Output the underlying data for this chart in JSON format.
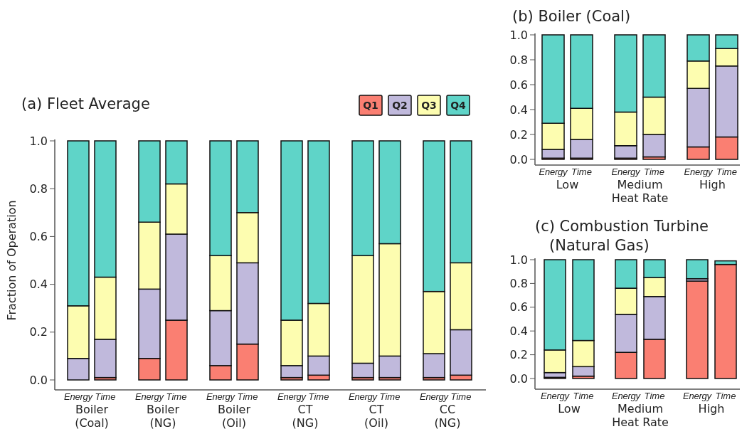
{
  "chart_data": [
    {
      "type": "bar",
      "stacked": true,
      "title": "(a) Fleet Average",
      "ylabel": "Fraction of Operation",
      "categories": [
        "Energy",
        "Time",
        "Energy",
        "Time",
        "Energy",
        "Time",
        "Energy",
        "Time",
        "Energy",
        "Time",
        "Energy",
        "Time"
      ],
      "annotations": [
        "Boiler\n(Coal)",
        "Boiler\n(NG)",
        "Boiler\n(Oil)",
        "CT\n(NG)",
        "CT\n(Oil)",
        "CC\n(NG)"
      ],
      "ylim": [
        0,
        1
      ],
      "yticks": [
        {
          "value": 0,
          "label": "0.0"
        },
        {
          "value": 0.2,
          "label": "0.2"
        },
        {
          "value": 0.4,
          "label": "0.4"
        },
        {
          "value": 0.6,
          "label": "0.6"
        },
        {
          "value": 0.8,
          "label": "0.8"
        },
        {
          "value": 1,
          "label": "1.0"
        }
      ],
      "grid": false,
      "legend": "top right",
      "series": [
        {
          "name": "Q1",
          "color": "#fa7f72",
          "values": [
            0.0,
            0.01,
            0.09,
            0.25,
            0.06,
            0.15,
            0.01,
            0.02,
            0.01,
            0.01,
            0.01,
            0.02
          ]
        },
        {
          "name": "Q2",
          "color": "#c0b9dc",
          "values": [
            0.09,
            0.16,
            0.29,
            0.36,
            0.23,
            0.34,
            0.05,
            0.08,
            0.06,
            0.09,
            0.1,
            0.19
          ]
        },
        {
          "name": "Q3",
          "color": "#fdfdb0",
          "values": [
            0.22,
            0.26,
            0.28,
            0.21,
            0.23,
            0.21,
            0.19,
            0.22,
            0.45,
            0.47,
            0.26,
            0.28
          ]
        },
        {
          "name": "Q4",
          "color": "#5fd4c8",
          "values": [
            0.69,
            0.57,
            0.34,
            0.18,
            0.48,
            0.3,
            0.75,
            0.68,
            0.48,
            0.43,
            0.63,
            0.51
          ]
        }
      ]
    },
    {
      "type": "bar",
      "stacked": true,
      "title": "(b) Boiler (Coal)",
      "xlabel": "Heat Rate",
      "categories": [
        "Energy",
        "Time",
        "Energy",
        "Time",
        "Energy",
        "Time"
      ],
      "annotations": [
        "Low",
        "Medium",
        "High"
      ],
      "ylim": [
        0,
        1
      ],
      "yticks": [
        {
          "value": 0,
          "label": "0.0"
        },
        {
          "value": 0.2,
          "label": "0.2"
        },
        {
          "value": 0.4,
          "label": "0.4"
        },
        {
          "value": 0.6,
          "label": "0.6"
        },
        {
          "value": 0.8,
          "label": "0.8"
        },
        {
          "value": 1,
          "label": "1.0"
        }
      ],
      "grid": false,
      "legend": false,
      "series": [
        {
          "color": "#fa7f72",
          "values": [
            0.01,
            0.01,
            0.01,
            0.02,
            0.1,
            0.18
          ]
        },
        {
          "color": "#c0b9dc",
          "values": [
            0.07,
            0.15,
            0.1,
            0.18,
            0.47,
            0.57
          ]
        },
        {
          "color": "#fdfdb0",
          "values": [
            0.21,
            0.25,
            0.27,
            0.3,
            0.22,
            0.14
          ]
        },
        {
          "color": "#5fd4c8",
          "values": [
            0.71,
            0.59,
            0.62,
            0.5,
            0.21,
            0.11
          ]
        }
      ]
    },
    {
      "type": "bar",
      "stacked": true,
      "title": "(c) Combustion Turbine\n(Natural Gas)",
      "xlabel": "Heat Rate",
      "categories": [
        "Energy",
        "Time",
        "Energy",
        "Time",
        "Energy",
        "Time"
      ],
      "annotations": [
        "Low",
        "Medium",
        "High"
      ],
      "ylim": [
        0,
        1
      ],
      "yticks": [
        {
          "value": 0,
          "label": "0.0"
        },
        {
          "value": 0.2,
          "label": "0.2"
        },
        {
          "value": 0.4,
          "label": "0.4"
        },
        {
          "value": 0.6,
          "label": "0.6"
        },
        {
          "value": 0.8,
          "label": "0.8"
        },
        {
          "value": 1,
          "label": "1.0"
        }
      ],
      "grid": false,
      "legend": false,
      "series": [
        {
          "color": "#fa7f72",
          "values": [
            0.01,
            0.02,
            0.22,
            0.33,
            0.82,
            0.96
          ]
        },
        {
          "color": "#c0b9dc",
          "values": [
            0.04,
            0.08,
            0.32,
            0.36,
            0.02,
            null
          ]
        },
        {
          "color": "#fdfdb0",
          "values": [
            0.19,
            0.22,
            0.22,
            0.16,
            0.0,
            0.0
          ]
        },
        {
          "color": "#5fd4c8",
          "values": [
            0.76,
            0.68,
            0.24,
            0.15,
            0.16,
            0.03
          ]
        }
      ]
    }
  ]
}
